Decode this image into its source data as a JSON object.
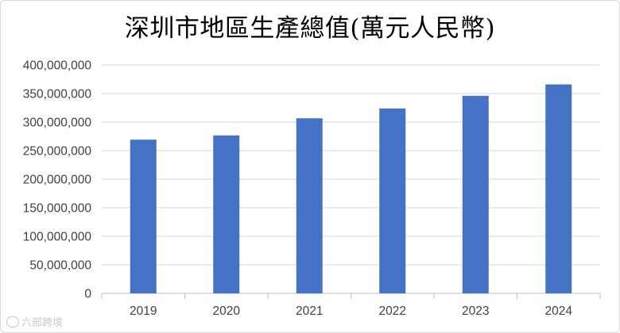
{
  "chart_data": {
    "type": "bar",
    "title": "深圳市地區生產總值(萬元人民幣)",
    "categories": [
      "2019",
      "2020",
      "2021",
      "2022",
      "2023",
      "2024"
    ],
    "values": [
      269270000,
      276702000,
      306649000,
      323875000,
      346066000,
      366020000
    ],
    "ylim": [
      0,
      400000000
    ],
    "yticks": [
      0,
      50000000,
      100000000,
      150000000,
      200000000,
      250000000,
      300000000,
      350000000,
      400000000
    ],
    "ytick_labels": [
      "0",
      "50,000,000",
      "100,000,000",
      "150,000,000",
      "200,000,000",
      "250,000,000",
      "300,000,000",
      "350,000,000",
      "400,000,000"
    ],
    "xlabel": "",
    "ylabel": "",
    "grid": true,
    "bar_color": "#4472c4",
    "grid_color": "#d9d9d9",
    "axis_color": "#bfbfbf",
    "tick_label_color": "#404040"
  },
  "watermark": {
    "text": "六部跨境"
  }
}
